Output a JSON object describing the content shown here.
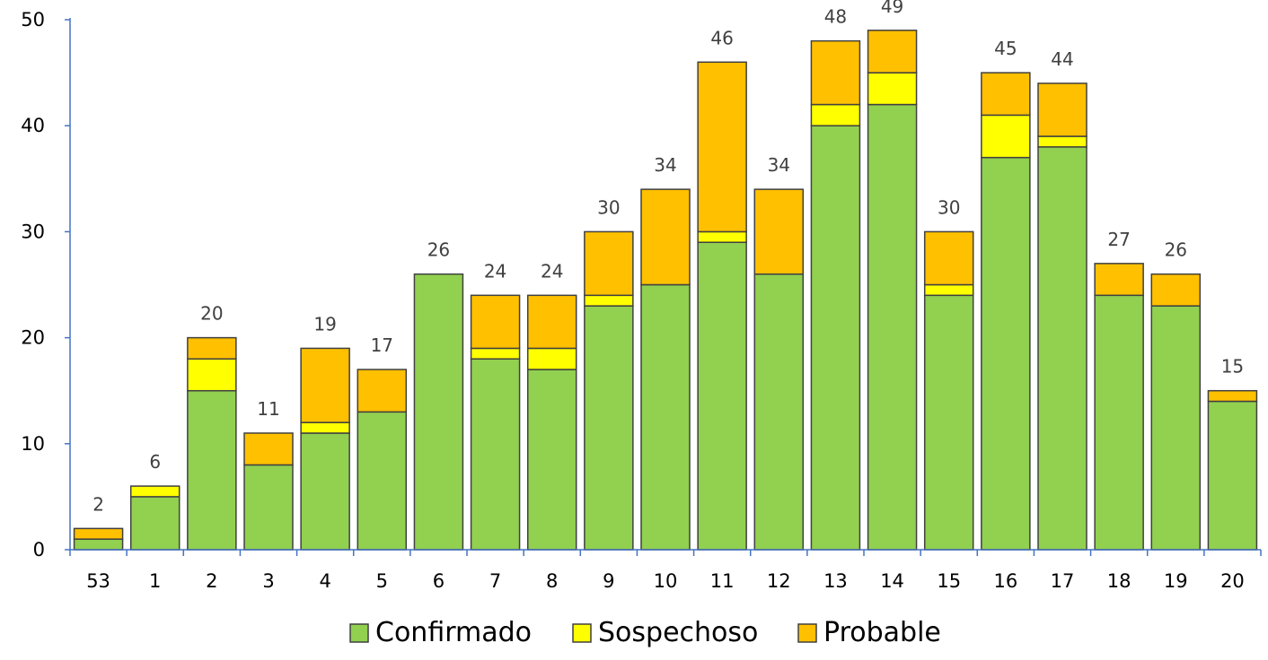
{
  "chart_data": {
    "type": "bar",
    "stacked": true,
    "categories": [
      "53",
      "1",
      "2",
      "3",
      "4",
      "5",
      "6",
      "7",
      "8",
      "9",
      "10",
      "11",
      "12",
      "13",
      "14",
      "15",
      "16",
      "17",
      "18",
      "19",
      "20"
    ],
    "series": [
      {
        "name": "Confirmado",
        "color": "#92D050",
        "values": [
          1,
          5,
          15,
          8,
          11,
          13,
          26,
          18,
          17,
          23,
          25,
          29,
          26,
          40,
          42,
          24,
          37,
          38,
          24,
          23,
          14
        ]
      },
      {
        "name": "Sospechoso",
        "color": "#FFFF00",
        "values": [
          0,
          1,
          3,
          0,
          1,
          0,
          0,
          1,
          2,
          1,
          0,
          1,
          0,
          2,
          3,
          1,
          4,
          1,
          0,
          0,
          0
        ]
      },
      {
        "name": "Probable",
        "color": "#FFC000",
        "values": [
          1,
          0,
          2,
          3,
          7,
          4,
          0,
          5,
          5,
          6,
          9,
          16,
          8,
          6,
          4,
          5,
          4,
          5,
          3,
          3,
          1
        ]
      }
    ],
    "totals": [
      2,
      6,
      20,
      11,
      19,
      17,
      26,
      24,
      24,
      30,
      34,
      46,
      34,
      48,
      49,
      30,
      45,
      44,
      27,
      26,
      15
    ],
    "ylim": [
      0,
      50
    ],
    "yticks": [
      0,
      10,
      20,
      30,
      40,
      50
    ],
    "title": "",
    "xlabel": "",
    "ylabel": "",
    "grid": false,
    "legend_position": "bottom",
    "axis_color": "#4472C4",
    "bar_border_color": "#404040",
    "label_color": "#404040"
  }
}
